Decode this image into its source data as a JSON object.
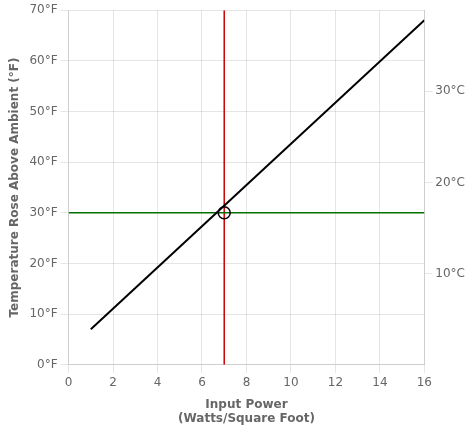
{
  "chart_data": {
    "type": "line",
    "xlabel": [
      "Input Power",
      "(Watts/Square Foot)"
    ],
    "ylabel": "Temperature Rose Above Ambient (°F)",
    "xlim": [
      0,
      16
    ],
    "ylim": [
      0,
      70
    ],
    "xticks": [
      0,
      2,
      4,
      6,
      8,
      10,
      12,
      14,
      16
    ],
    "yticks": [
      {
        "value": 0,
        "label": "0°F"
      },
      {
        "value": 10,
        "label": "10°F"
      },
      {
        "value": 20,
        "label": "20°F"
      },
      {
        "value": 30,
        "label": "30°F"
      },
      {
        "value": 40,
        "label": "40°F"
      },
      {
        "value": 50,
        "label": "50°F"
      },
      {
        "value": 60,
        "label": "60°F"
      },
      {
        "value": 70,
        "label": "70°F"
      }
    ],
    "y2lim": [
      0,
      70
    ],
    "y2ticks": [
      {
        "value": 18.0,
        "label": "10°C"
      },
      {
        "value": 36.0,
        "label": "20°C"
      },
      {
        "value": 54.0,
        "label": "30°C"
      }
    ],
    "grid": true,
    "series": [
      {
        "x": [
          1.0,
          16.0
        ],
        "values": [
          7.0,
          68.0
        ],
        "color": "#000000"
      }
    ],
    "vlines": [
      {
        "x": 7.0,
        "color": "#cc0000"
      }
    ],
    "hlines": [
      {
        "y": 30.0,
        "color": "#007000"
      }
    ],
    "points": [
      {
        "x": 7.0,
        "y": 30.0,
        "color": "#000000",
        "marker": "circle"
      }
    ]
  }
}
